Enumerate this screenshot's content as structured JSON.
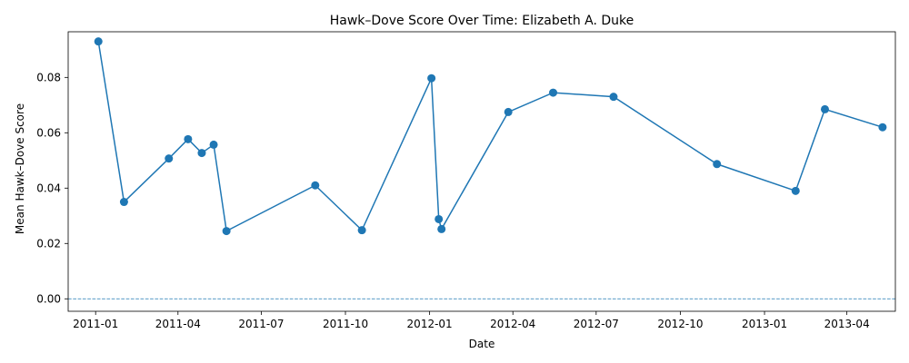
{
  "chart_data": {
    "type": "line",
    "title": "Hawk–Dove Score Over Time: Elizabeth A. Duke",
    "xlabel": "Date",
    "ylabel": "Mean Hawk–Dove Score",
    "x_tick_labels": [
      "2011-01",
      "2011-04",
      "2011-07",
      "2011-10",
      "2012-01",
      "2012-04",
      "2012-07",
      "2012-10",
      "2013-01",
      "2013-04"
    ],
    "y_tick_labels": [
      "0.00",
      "0.02",
      "0.04",
      "0.06",
      "0.08"
    ],
    "ylim": [
      -0.0045,
      0.0965
    ],
    "xlim": [
      "2010-12-02",
      "2013-05-24"
    ],
    "grid": false,
    "reference_line": {
      "y": 0,
      "style": "dashed"
    },
    "line_color": "#1f77b4",
    "series": [
      {
        "x": [
          "2011-01-04",
          "2011-02-01",
          "2011-03-22",
          "2011-04-12",
          "2011-04-27",
          "2011-05-10",
          "2011-05-24",
          "2011-08-29",
          "2011-10-19",
          "2012-01-03",
          "2012-01-11",
          "2012-01-14",
          "2012-03-27",
          "2012-05-15",
          "2012-07-20",
          "2012-11-10",
          "2013-02-04",
          "2013-03-08",
          "2013-05-10"
        ],
        "y": [
          0.093,
          0.035,
          0.0507,
          0.0577,
          0.0527,
          0.0557,
          0.0245,
          0.041,
          0.0248,
          0.0797,
          0.0288,
          0.0252,
          0.0675,
          0.0745,
          0.073,
          0.0487,
          0.039,
          0.0685,
          0.062
        ]
      }
    ]
  }
}
